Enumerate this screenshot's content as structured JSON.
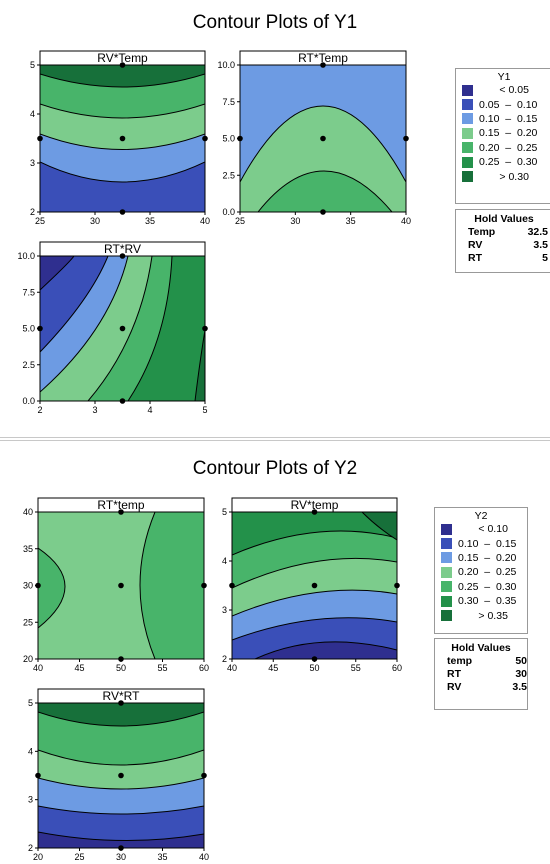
{
  "titles": {
    "y1": "Contour Plots of Y1",
    "y2": "Contour Plots of Y2"
  },
  "legend_y1": {
    "title": "Y1",
    "items": [
      {
        "label": "       < 0.05",
        "color": "#2f2f8f"
      },
      {
        "label": "0.05  –  0.10",
        "color": "#3a4fb8"
      },
      {
        "label": "0.10  –  0.15",
        "color": "#6d9be3"
      },
      {
        "label": "0.15  –  0.20",
        "color": "#7ccc8c"
      },
      {
        "label": "0.20  –  0.25",
        "color": "#48b46a"
      },
      {
        "label": "0.25  –  0.30",
        "color": "#23914a"
      },
      {
        "label": "       > 0.30",
        "color": "#17703a"
      }
    ]
  },
  "legend_y2": {
    "title": "Y2",
    "items": [
      {
        "label": "       < 0.10",
        "color": "#2f2f8f"
      },
      {
        "label": "0.10  –  0.15",
        "color": "#3a4fb8"
      },
      {
        "label": "0.15  –  0.20",
        "color": "#6d9be3"
      },
      {
        "label": "0.20  –  0.25",
        "color": "#7ccc8c"
      },
      {
        "label": "0.25  –  0.30",
        "color": "#48b46a"
      },
      {
        "label": "0.30  –  0.35",
        "color": "#23914a"
      },
      {
        "label": "       > 0.35",
        "color": "#17703a"
      }
    ]
  },
  "hold_y1": {
    "title": "Hold Values",
    "rows": [
      {
        "name": "Temp",
        "value": "32.5"
      },
      {
        "name": "RV",
        "value": "3.5"
      },
      {
        "name": "RT",
        "value": "5"
      }
    ]
  },
  "hold_y2": {
    "title": "Hold Values",
    "rows": [
      {
        "name": "temp",
        "value": "50"
      },
      {
        "name": "RT",
        "value": "30"
      },
      {
        "name": "RV",
        "value": "3.5"
      }
    ]
  },
  "chart_data": [
    {
      "type": "contour",
      "title": "RV*Temp",
      "xlim": [
        25,
        40
      ],
      "ylim": [
        2,
        5
      ],
      "xticks": [
        "25",
        "30",
        "35",
        "40"
      ],
      "yticks": [
        "2",
        "3",
        "4",
        "5"
      ],
      "points": [
        [
          32.5,
          5
        ],
        [
          32.5,
          3.5
        ],
        [
          25,
          3.5
        ],
        [
          40,
          3.5
        ],
        [
          32.5,
          2
        ]
      ]
    },
    {
      "type": "contour",
      "title": "RT*Temp",
      "xlim": [
        25,
        40
      ],
      "ylim": [
        0,
        10
      ],
      "xticks": [
        "25",
        "30",
        "35",
        "40"
      ],
      "yticks": [
        "0.0",
        "2.5",
        "5.0",
        "7.5",
        "10.0"
      ],
      "points": [
        [
          32.5,
          10
        ],
        [
          25,
          5
        ],
        [
          32.5,
          5
        ],
        [
          40,
          5
        ],
        [
          32.5,
          0
        ]
      ]
    },
    {
      "type": "contour",
      "title": "RT*RV",
      "xlim": [
        2,
        5
      ],
      "ylim": [
        0,
        10
      ],
      "xticks": [
        "2",
        "3",
        "4",
        "5"
      ],
      "yticks": [
        "0.0",
        "2.5",
        "5.0",
        "7.5",
        "10.0"
      ],
      "points": [
        [
          3.5,
          10
        ],
        [
          2,
          5
        ],
        [
          3.5,
          5
        ],
        [
          5,
          5
        ],
        [
          3.5,
          0
        ]
      ]
    },
    {
      "type": "contour",
      "title": "RT*temp",
      "xlim": [
        40,
        60
      ],
      "ylim": [
        20,
        40
      ],
      "xticks": [
        "40",
        "45",
        "50",
        "55",
        "60"
      ],
      "yticks": [
        "20",
        "25",
        "30",
        "35",
        "40"
      ],
      "points": [
        [
          50,
          40
        ],
        [
          40,
          30
        ],
        [
          50,
          30
        ],
        [
          60,
          30
        ],
        [
          50,
          20
        ]
      ]
    },
    {
      "type": "contour",
      "title": "RV*temp",
      "xlim": [
        40,
        60
      ],
      "ylim": [
        2,
        5
      ],
      "xticks": [
        "40",
        "45",
        "50",
        "55",
        "60"
      ],
      "yticks": [
        "2",
        "3",
        "4",
        "5"
      ],
      "points": [
        [
          50,
          5
        ],
        [
          40,
          3.5
        ],
        [
          50,
          3.5
        ],
        [
          60,
          3.5
        ],
        [
          50,
          2
        ]
      ]
    },
    {
      "type": "contour",
      "title": "RV*RT",
      "xlim": [
        20,
        40
      ],
      "ylim": [
        2,
        5
      ],
      "xticks": [
        "20",
        "25",
        "30",
        "35",
        "40"
      ],
      "yticks": [
        "2",
        "3",
        "4",
        "5"
      ],
      "points": [
        [
          30,
          5
        ],
        [
          20,
          3.5
        ],
        [
          30,
          3.5
        ],
        [
          40,
          3.5
        ],
        [
          30,
          2
        ]
      ]
    }
  ]
}
